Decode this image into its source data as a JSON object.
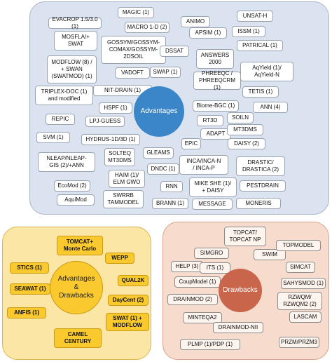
{
  "advantages": {
    "title": "Advantages",
    "tags": [
      {
        "id": "tag-evacrop",
        "label": "EVACROP 1.5/3.0 (1)"
      },
      {
        "id": "tag-magic",
        "label": "MAGIC (1)"
      },
      {
        "id": "tag-animo",
        "label": "ANIMO"
      },
      {
        "id": "tag-unsat-h",
        "label": "UNSAT-H"
      },
      {
        "id": "tag-mosfla",
        "label": "MOSFLA/+\nSWAT"
      },
      {
        "id": "tag-macro",
        "label": "MACRO 1-D (2)"
      },
      {
        "id": "tag-apsim",
        "label": "APSIM (1)"
      },
      {
        "id": "tag-issm",
        "label": "ISSM (1)"
      },
      {
        "id": "tag-gossym",
        "label": "GOSSYM/GOSSYM-\nCOMAX/GOSSYM-\n2DSOIL"
      },
      {
        "id": "tag-patrical",
        "label": "PATRICAL (1)"
      },
      {
        "id": "tag-dssat",
        "label": "DSSAT"
      },
      {
        "id": "tag-answers",
        "label": "ANSWERS\n2000"
      },
      {
        "id": "tag-modflow",
        "label": "MODFLOW (8) /\n+ SWAN\n(SWATMOD) (1)"
      },
      {
        "id": "tag-vadoft",
        "label": "VADOFT"
      },
      {
        "id": "tag-swap",
        "label": "SWAP (1)"
      },
      {
        "id": "tag-phreeqc",
        "label": "PHREEQC /\nPHREEQCRM (1)"
      },
      {
        "id": "tag-aqyield",
        "label": "AqYield (1)/\nAqYield-N"
      },
      {
        "id": "tag-triplex",
        "label": "TRIPLEX-DOC (1)\nand modified"
      },
      {
        "id": "tag-nit-drain",
        "label": "NIT-DRAIN (1)"
      },
      {
        "id": "tag-tetis",
        "label": "TETIS (1)"
      },
      {
        "id": "tag-repic",
        "label": "REPIC"
      },
      {
        "id": "tag-hspf",
        "label": "HSPF (1)"
      },
      {
        "id": "tag-biome-bgc",
        "label": "Biome-BGC (1)"
      },
      {
        "id": "tag-ann",
        "label": "ANN (4)"
      },
      {
        "id": "tag-lpj-guess",
        "label": "LPJ-GUESS"
      },
      {
        "id": "tag-rt3d",
        "label": "RT3D"
      },
      {
        "id": "tag-soiln",
        "label": "SOILN"
      },
      {
        "id": "tag-svm",
        "label": "SVM (1)"
      },
      {
        "id": "tag-hydrus",
        "label": "HYDRUS-1D/3D (1)"
      },
      {
        "id": "tag-adapt",
        "label": "ADAPT"
      },
      {
        "id": "tag-mt3dms",
        "label": "MT3DMS"
      },
      {
        "id": "tag-nleap",
        "label": "NLEAP/NLEAP-\nGIS (2)/+ANN"
      },
      {
        "id": "tag-soilteq",
        "label": "SOLTEQ\nMT3DMS"
      },
      {
        "id": "tag-epic",
        "label": "EPIC"
      },
      {
        "id": "tag-daisy",
        "label": "DAISY (2)"
      },
      {
        "id": "tag-gleams",
        "label": "GLEAMS"
      },
      {
        "id": "tag-inca",
        "label": "INCA/INCA-N\n/ INCA-P"
      },
      {
        "id": "tag-drastic",
        "label": "DRASTIC/\nDRASTICA (2)"
      },
      {
        "id": "tag-haim",
        "label": "HAIM (1)/\nELM GWO"
      },
      {
        "id": "tag-dndc",
        "label": "DNDC (1)"
      },
      {
        "id": "tag-ecomod",
        "label": "EcoMod (2)"
      },
      {
        "id": "tag-rnn",
        "label": "RNN"
      },
      {
        "id": "tag-mike-she",
        "label": "MIKE SHE (1)/\n+ DAISY"
      },
      {
        "id": "tag-pestdrain",
        "label": "PESTDRAIN"
      },
      {
        "id": "tag-swrrb",
        "label": "SWRRB\nTAMMODEL"
      },
      {
        "id": "tag-aquimod",
        "label": "AquiMod"
      },
      {
        "id": "tag-brann",
        "label": "BRANN (1)"
      },
      {
        "id": "tag-message",
        "label": "MESSAGE"
      },
      {
        "id": "tag-moneris",
        "label": "MONERIS"
      }
    ]
  },
  "advantages_drawbacks": {
    "title": "Advantages\n&\nDrawbacks",
    "tags": [
      {
        "id": "tag-tomcat-mc",
        "label": "TOMCAT+\nMonte Carlo"
      },
      {
        "id": "tag-wepp",
        "label": "WEPP"
      },
      {
        "id": "tag-stics",
        "label": "STICS (1)"
      },
      {
        "id": "tag-qual2k",
        "label": "QUAL2K"
      },
      {
        "id": "tag-seawat",
        "label": "SEAWAT (1)"
      },
      {
        "id": "tag-daycent",
        "label": "DayCent (2)"
      },
      {
        "id": "tag-anfis",
        "label": "ANFIS (1)"
      },
      {
        "id": "tag-swat-modflow",
        "label": "SWAT (1) +\nMODFLOW"
      },
      {
        "id": "tag-camel-century",
        "label": "CAMEL\nCENTURY"
      }
    ]
  },
  "drawbacks": {
    "title": "Drawbacks",
    "tags": [
      {
        "id": "tag-topcat",
        "label": "TOPCAT/\nTOPCAT NP"
      },
      {
        "id": "tag-simgro",
        "label": "SIMGRO"
      },
      {
        "id": "tag-swim",
        "label": "SWIM"
      },
      {
        "id": "tag-topmodel",
        "label": "TOPMODEL"
      },
      {
        "id": "tag-help",
        "label": "HELP (3)"
      },
      {
        "id": "tag-its",
        "label": "ITS (1)"
      },
      {
        "id": "tag-simcat",
        "label": "SIMCAT"
      },
      {
        "id": "tag-coupmodel",
        "label": "CoupModel (1)"
      },
      {
        "id": "tag-sahysmod",
        "label": "SAHYSMOD (1)"
      },
      {
        "id": "tag-drainmod",
        "label": "DRAINMOD (2)"
      },
      {
        "id": "tag-rzwqm",
        "label": "RZWQM/\nRZWQM2 (2)"
      },
      {
        "id": "tag-minteqa2",
        "label": "MINTEQA2"
      },
      {
        "id": "tag-drainmod-nii",
        "label": "DRAINMOD-NII"
      },
      {
        "id": "tag-lascam",
        "label": "LASCAM"
      },
      {
        "id": "tag-plmp",
        "label": "PLMP (1)/PDP (1)"
      },
      {
        "id": "tag-przm",
        "label": "PRZM/PRZM3"
      }
    ]
  }
}
